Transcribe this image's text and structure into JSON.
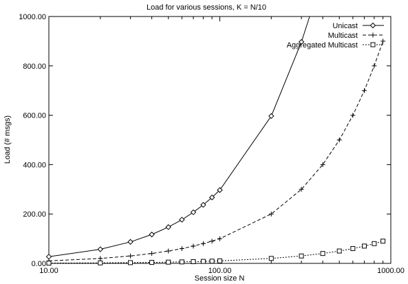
{
  "chart_data": {
    "type": "line",
    "title": "Load for various sessions, K = N/10",
    "xlabel": "Session size N",
    "ylabel": "Load (# msgs)",
    "xscale": "log",
    "xlim": [
      10,
      1000
    ],
    "ylim": [
      0,
      1000
    ],
    "xticks": [
      10,
      100,
      1000
    ],
    "xtick_labels": [
      "10.00",
      "100.00",
      "1000.00"
    ],
    "yticks": [
      0,
      200,
      400,
      600,
      800,
      1000
    ],
    "ytick_labels": [
      "0.00",
      "200.00",
      "400.00",
      "600.00",
      "800.00",
      "1000.00"
    ],
    "grid": false,
    "legend_position": "top-right",
    "series": [
      {
        "name": "Unicast",
        "line": "solid",
        "marker": "diamond",
        "x": [
          10,
          20,
          30,
          40,
          50,
          60,
          70,
          80,
          90,
          100,
          200,
          300,
          335
        ],
        "y": [
          27,
          57,
          87,
          117,
          147,
          177,
          207,
          237,
          267,
          297,
          597,
          897,
          1000
        ]
      },
      {
        "name": "Multicast",
        "line": "dashed",
        "marker": "plus",
        "x": [
          10,
          20,
          30,
          40,
          50,
          60,
          70,
          80,
          90,
          100,
          200,
          300,
          400,
          500,
          600,
          700,
          800,
          900
        ],
        "y": [
          10,
          20,
          30,
          40,
          50,
          60,
          70,
          80,
          90,
          100,
          200,
          300,
          400,
          500,
          600,
          700,
          800,
          900
        ]
      },
      {
        "name": "Aggregated Multicast",
        "line": "dotted",
        "marker": "square",
        "x": [
          10,
          20,
          30,
          40,
          50,
          60,
          70,
          80,
          90,
          100,
          200,
          300,
          400,
          500,
          600,
          700,
          800,
          900
        ],
        "y": [
          1,
          2,
          3,
          4,
          5,
          6,
          7,
          8,
          9,
          10,
          20,
          30,
          40,
          50,
          60,
          70,
          80,
          90
        ]
      }
    ]
  }
}
